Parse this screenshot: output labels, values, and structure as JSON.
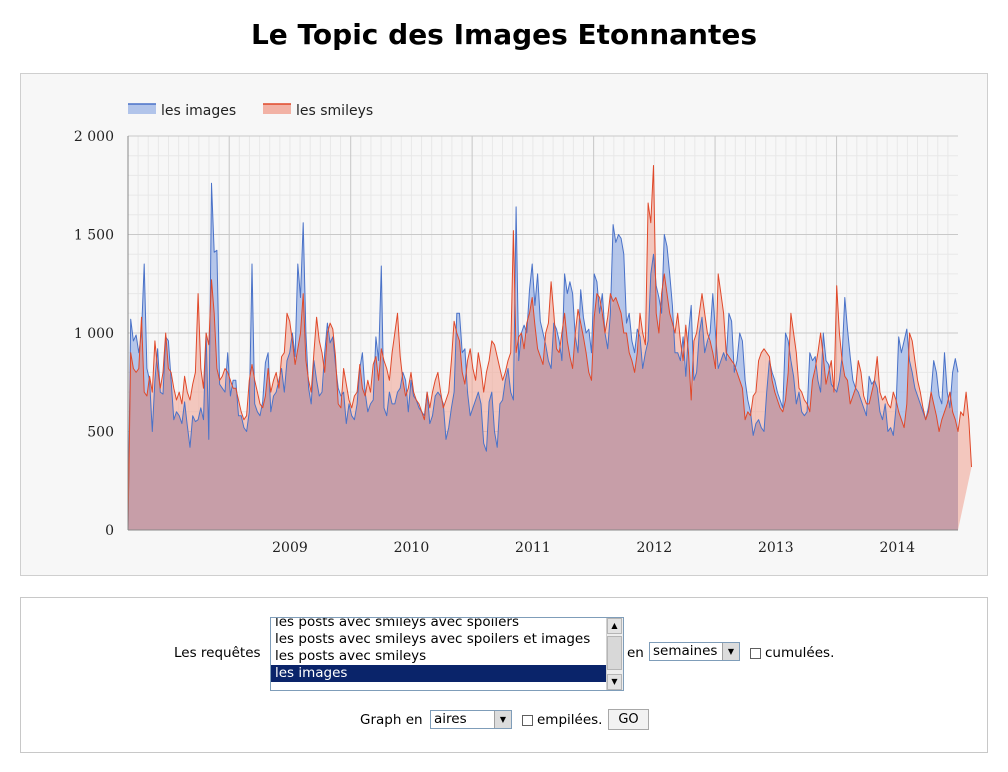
{
  "page": {
    "title": "Le Topic des Images Etonnantes"
  },
  "colors": {
    "images": "#4a72c8",
    "smileys": "#e0492a",
    "images_fill": "#9fb6e6",
    "smileys_fill": "#f0a090",
    "overlap_fill": "#c59ca6"
  },
  "chart_data": {
    "type": "area",
    "ylim": [
      0,
      2000
    ],
    "yticks": [
      0,
      500,
      1000,
      1500,
      2000
    ],
    "ytick_labels": [
      "0",
      "500",
      "1 000",
      "1 500",
      "2 000"
    ],
    "x_start": "2008-03",
    "x_end": "2014-12",
    "xtick_labels": [
      "2009",
      "2010",
      "2011",
      "2012",
      "2013",
      "2014"
    ],
    "grid": true,
    "legend_position": "top-left",
    "legend": [
      "les images",
      "les smileys"
    ],
    "series": [
      {
        "name": "les images",
        "values": [
          0,
          1070,
          960,
          990,
          900,
          1000,
          1350,
          820,
          760,
          500,
          760,
          920,
          700,
          690,
          980,
          960,
          760,
          560,
          600,
          580,
          540,
          650,
          530,
          420,
          580,
          550,
          560,
          620,
          560,
          1000,
          460,
          1760,
          1410,
          1420,
          740,
          720,
          700,
          900,
          680,
          760,
          760,
          580,
          580,
          520,
          500,
          600,
          1350,
          640,
          600,
          580,
          650,
          850,
          900,
          600,
          680,
          700,
          760,
          820,
          700,
          860,
          900,
          1000,
          880,
          1350,
          1180,
          1560,
          1000,
          720,
          640,
          860,
          760,
          680,
          700,
          900,
          1050,
          950,
          980,
          840,
          720,
          680,
          700,
          540,
          640,
          580,
          560,
          640,
          820,
          900,
          700,
          600,
          640,
          660,
          980,
          860,
          1340,
          620,
          580,
          700,
          640,
          640,
          700,
          720,
          800,
          760,
          600,
          760,
          680,
          660,
          620,
          600,
          580,
          700,
          540,
          580,
          680,
          700,
          680,
          640,
          460,
          520,
          620,
          700,
          1100,
          1100,
          900,
          920,
          700,
          580,
          620,
          660,
          700,
          640,
          440,
          400,
          650,
          700,
          500,
          420,
          640,
          660,
          760,
          820,
          700,
          660,
          1640,
          860,
          1000,
          1040,
          1000,
          1220,
          1350,
          1140,
          1300,
          1060,
          1000,
          940,
          860,
          820,
          1050,
          1020,
          960,
          860,
          1300,
          1200,
          1260,
          1200,
          980,
          900,
          1220,
          1080,
          1000,
          1020,
          900,
          1300,
          1260,
          1100,
          1200,
          1000,
          920,
          1100,
          1550,
          1460,
          1500,
          1480,
          1400,
          1050,
          1100,
          960,
          900,
          1020,
          980,
          820,
          900,
          960,
          1300,
          1400,
          1240,
          1180,
          1100,
          1500,
          1440,
          1300,
          1140,
          900,
          900,
          860,
          980,
          780,
          1000,
          1140,
          760,
          800,
          1000,
          1080,
          900,
          960,
          1000,
          1200,
          1000,
          820,
          860,
          900,
          860,
          1100,
          1060,
          800,
          860,
          1000,
          960,
          760,
          660,
          600,
          480,
          540,
          560,
          520,
          500,
          700,
          860,
          800,
          760,
          700,
          660,
          620,
          1000,
          960,
          860,
          780,
          640,
          700,
          600,
          580,
          600,
          900,
          860,
          880,
          760,
          700,
          1000,
          860,
          840,
          740,
          720,
          700,
          760,
          880,
          1180,
          1020,
          880,
          760,
          720,
          700,
          660,
          620,
          580,
          780,
          740,
          760,
          720,
          600,
          560,
          640,
          500,
          520,
          480,
          620,
          980,
          900,
          960,
          1020,
          860,
          800,
          720,
          680,
          640,
          600,
          560,
          620,
          700,
          860,
          800,
          680,
          640,
          900,
          700,
          620,
          800,
          870,
          800
        ]
      },
      {
        "name": "les smileys",
        "values": [
          0,
          900,
          820,
          800,
          820,
          1080,
          700,
          680,
          780,
          700,
          960,
          820,
          720,
          800,
          1000,
          820,
          800,
          720,
          660,
          700,
          640,
          780,
          700,
          660,
          740,
          800,
          1200,
          820,
          720,
          1000,
          940,
          1270,
          1100,
          820,
          760,
          780,
          820,
          800,
          760,
          720,
          720,
          660,
          600,
          560,
          580,
          760,
          840,
          760,
          700,
          640,
          620,
          680,
          820,
          700,
          760,
          800,
          720,
          880,
          900,
          1100,
          1060,
          960,
          840,
          920,
          1000,
          1200,
          860,
          760,
          700,
          900,
          1080,
          960,
          900,
          800,
          1000,
          1050,
          1020,
          880,
          640,
          620,
          820,
          740,
          660,
          620,
          680,
          700,
          840,
          720,
          680,
          760,
          700,
          840,
          880,
          760,
          920,
          860,
          820,
          760,
          900,
          1000,
          1100,
          880,
          760,
          680,
          720,
          800,
          700,
          660,
          640,
          600,
          560,
          700,
          620,
          700,
          760,
          800,
          700,
          620,
          660,
          700,
          860,
          1060,
          1000,
          960,
          800,
          740,
          860,
          920,
          820,
          760,
          900,
          820,
          700,
          800,
          860,
          960,
          940,
          880,
          820,
          760,
          800,
          860,
          900,
          1520,
          900,
          980,
          1000,
          920,
          1050,
          1100,
          1180,
          1040,
          920,
          880,
          840,
          1000,
          1050,
          1260,
          1100,
          920,
          900,
          1000,
          1100,
          960,
          880,
          820,
          1000,
          1120,
          1050,
          980,
          900,
          800,
          760,
          1080,
          1200,
          1180,
          1100,
          1000,
          1080,
          1200,
          1160,
          1180,
          1140,
          1100,
          1000,
          1000,
          900,
          860,
          800,
          900,
          1100,
          1000,
          940,
          1660,
          1560,
          1850,
          1100,
          1000,
          1200,
          1300,
          1200,
          1100,
          1050,
          1000,
          1100,
          960,
          860,
          1040,
          900,
          660,
          960,
          1000,
          1100,
          1200,
          1100,
          1000,
          960,
          900,
          820,
          1300,
          1200,
          1100,
          900,
          880,
          860,
          840,
          800,
          760,
          720,
          560,
          600,
          580,
          680,
          700,
          860,
          900,
          920,
          900,
          880,
          760,
          700,
          660,
          620,
          600,
          660,
          800,
          1100,
          1000,
          900,
          720,
          700,
          660,
          640,
          600,
          760,
          820,
          900,
          1000,
          880,
          740,
          800,
          860,
          700,
          1240,
          1000,
          860,
          780,
          760,
          640,
          680,
          720,
          860,
          800,
          680,
          640,
          640,
          700,
          760,
          880,
          700,
          660,
          680,
          640,
          620,
          700,
          660,
          600,
          560,
          520,
          640,
          1000,
          960,
          860,
          760,
          700,
          620,
          560,
          600,
          700,
          640,
          580,
          500,
          560,
          600,
          640,
          700,
          600,
          560,
          500,
          600,
          580,
          700,
          560,
          320
        ]
      }
    ]
  },
  "controls": {
    "requests_label": "Les requêtes",
    "requests_options": [
      "les posts avec smileys avec spoilers",
      "les posts avec smileys avec spoilers et images",
      "les posts avec smileys",
      "les images"
    ],
    "requests_selected": "les images",
    "en_label": "en",
    "period_value": "semaines",
    "cumulative_label": "cumulées.",
    "graph_label": "Graph en",
    "graph_type_value": "aires",
    "stacked_label": "empilées.",
    "go_label": "GO",
    "scroll_up": "▲",
    "scroll_down": "▼",
    "select_arrow": "▼"
  }
}
